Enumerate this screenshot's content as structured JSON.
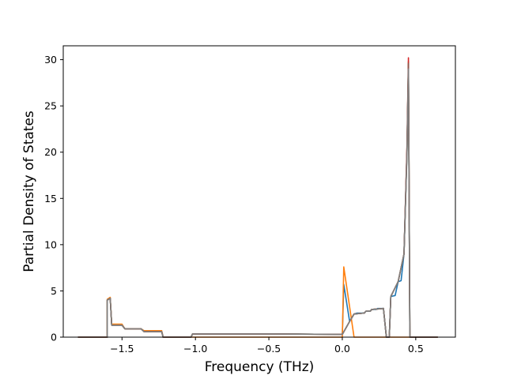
{
  "chart_data": {
    "type": "line",
    "title": "",
    "xlabel": "Frequency (THz)",
    "ylabel": "Partial Density of States",
    "xlim": [
      -1.9,
      0.77
    ],
    "ylim": [
      0,
      31.5
    ],
    "x_ticks": [
      -1.5,
      -1.0,
      -0.5,
      0.0,
      0.5
    ],
    "x_tick_labels": [
      "−1.5",
      "−1.0",
      "−0.5",
      "0.0",
      "0.5"
    ],
    "y_ticks": [
      0,
      5,
      10,
      15,
      20,
      25,
      30
    ],
    "y_tick_labels": [
      "0",
      "5",
      "10",
      "15",
      "20",
      "25",
      "30"
    ],
    "grid": false,
    "legend": "none",
    "series": [
      {
        "color": "#1f77b4",
        "points": [
          [
            -1.8,
            0
          ],
          [
            -1.6,
            0
          ],
          [
            -1.6,
            4.0
          ],
          [
            -1.58,
            4.2
          ],
          [
            -1.57,
            1.3
          ],
          [
            -1.5,
            1.3
          ],
          [
            -1.48,
            0.9
          ],
          [
            -1.37,
            0.9
          ],
          [
            -1.35,
            0.6
          ],
          [
            -1.23,
            0.6
          ],
          [
            -1.22,
            0
          ],
          [
            -1.03,
            0
          ],
          [
            -1.02,
            0.35
          ],
          [
            -0.8,
            0.35
          ],
          [
            -0.5,
            0.35
          ],
          [
            -0.3,
            0.33
          ],
          [
            0.0,
            0.3
          ],
          [
            0.01,
            5.7
          ],
          [
            0.05,
            1.7
          ],
          [
            0.08,
            2.5
          ],
          [
            0.1,
            2.6
          ],
          [
            0.15,
            2.6
          ],
          [
            0.16,
            2.8
          ],
          [
            0.19,
            2.8
          ],
          [
            0.2,
            3.0
          ],
          [
            0.23,
            3.0
          ],
          [
            0.24,
            3.1
          ],
          [
            0.28,
            3.1
          ],
          [
            0.3,
            0
          ],
          [
            0.32,
            0
          ],
          [
            0.33,
            4.4
          ],
          [
            0.36,
            4.5
          ],
          [
            0.38,
            6.0
          ],
          [
            0.4,
            6.1
          ],
          [
            0.42,
            9.0
          ],
          [
            0.44,
            20.0
          ],
          [
            0.45,
            29.5
          ],
          [
            0.46,
            0
          ],
          [
            0.65,
            0
          ]
        ]
      },
      {
        "color": "#ff7f0e",
        "points": [
          [
            -1.8,
            0
          ],
          [
            -1.6,
            0
          ],
          [
            -1.6,
            4.1
          ],
          [
            -1.58,
            4.3
          ],
          [
            -1.57,
            1.4
          ],
          [
            -1.5,
            1.4
          ],
          [
            -1.48,
            0.9
          ],
          [
            -1.37,
            0.9
          ],
          [
            -1.35,
            0.7
          ],
          [
            -1.23,
            0.7
          ],
          [
            -1.22,
            0
          ],
          [
            0.0,
            0
          ],
          [
            0.01,
            7.6
          ],
          [
            0.08,
            0
          ],
          [
            0.65,
            0
          ]
        ]
      },
      {
        "color": "#2ca02c",
        "points": [
          [
            -1.8,
            0
          ],
          [
            -1.6,
            0
          ],
          [
            -1.6,
            4.0
          ],
          [
            -1.58,
            4.2
          ],
          [
            -1.57,
            1.3
          ],
          [
            -1.5,
            1.3
          ],
          [
            -1.48,
            0.9
          ],
          [
            -1.37,
            0.9
          ],
          [
            -1.35,
            0.6
          ],
          [
            -1.23,
            0.6
          ],
          [
            -1.22,
            0
          ],
          [
            -1.03,
            0
          ],
          [
            -1.02,
            0.35
          ],
          [
            -0.5,
            0.35
          ],
          [
            0.0,
            0.3
          ],
          [
            0.05,
            1.7
          ],
          [
            0.08,
            2.5
          ],
          [
            0.15,
            2.6
          ],
          [
            0.16,
            2.8
          ],
          [
            0.19,
            2.8
          ],
          [
            0.2,
            3.0
          ],
          [
            0.28,
            3.1
          ],
          [
            0.3,
            0
          ],
          [
            0.32,
            0
          ],
          [
            0.33,
            4.4
          ],
          [
            0.38,
            6.0
          ],
          [
            0.42,
            9.0
          ],
          [
            0.44,
            20.0
          ],
          [
            0.45,
            29.8
          ],
          [
            0.46,
            0
          ],
          [
            0.65,
            0
          ]
        ]
      },
      {
        "color": "#d62728",
        "points": [
          [
            -1.8,
            0
          ],
          [
            -1.6,
            0
          ],
          [
            -1.6,
            4.0
          ],
          [
            -1.58,
            4.2
          ],
          [
            -1.57,
            1.3
          ],
          [
            -1.5,
            1.3
          ],
          [
            -1.48,
            0.9
          ],
          [
            -1.37,
            0.9
          ],
          [
            -1.35,
            0.6
          ],
          [
            -1.23,
            0.6
          ],
          [
            -1.22,
            0
          ],
          [
            -1.03,
            0
          ],
          [
            -1.02,
            0.35
          ],
          [
            -0.5,
            0.35
          ],
          [
            0.0,
            0.3
          ],
          [
            0.05,
            1.7
          ],
          [
            0.08,
            2.5
          ],
          [
            0.15,
            2.6
          ],
          [
            0.16,
            2.8
          ],
          [
            0.19,
            2.8
          ],
          [
            0.2,
            3.0
          ],
          [
            0.28,
            3.1
          ],
          [
            0.3,
            0
          ],
          [
            0.32,
            0
          ],
          [
            0.33,
            4.4
          ],
          [
            0.38,
            6.0
          ],
          [
            0.42,
            9.0
          ],
          [
            0.44,
            20.5
          ],
          [
            0.45,
            30.2
          ],
          [
            0.46,
            0
          ],
          [
            0.65,
            0
          ]
        ]
      },
      {
        "color": "#8c564b",
        "points": [
          [
            -1.8,
            0
          ],
          [
            -1.6,
            0
          ],
          [
            -1.6,
            4.0
          ],
          [
            -1.58,
            4.2
          ],
          [
            -1.57,
            1.3
          ],
          [
            -1.5,
            1.3
          ],
          [
            -1.48,
            0.9
          ],
          [
            -1.37,
            0.9
          ],
          [
            -1.35,
            0.6
          ],
          [
            -1.23,
            0.6
          ],
          [
            -1.22,
            0
          ],
          [
            -1.03,
            0
          ],
          [
            -1.02,
            0.35
          ],
          [
            -0.5,
            0.35
          ],
          [
            0.0,
            0.3
          ],
          [
            0.05,
            1.7
          ],
          [
            0.08,
            2.5
          ],
          [
            0.15,
            2.6
          ],
          [
            0.16,
            2.8
          ],
          [
            0.19,
            2.8
          ],
          [
            0.2,
            3.0
          ],
          [
            0.28,
            3.1
          ],
          [
            0.3,
            0
          ],
          [
            0.32,
            0
          ],
          [
            0.33,
            4.4
          ],
          [
            0.38,
            6.0
          ],
          [
            0.42,
            9.0
          ],
          [
            0.44,
            20.0
          ],
          [
            0.45,
            29.6
          ],
          [
            0.46,
            0
          ],
          [
            0.65,
            0
          ]
        ]
      },
      {
        "color": "#7f7f7f",
        "points": [
          [
            -1.8,
            0
          ],
          [
            -1.6,
            0
          ],
          [
            -1.6,
            4.0
          ],
          [
            -1.58,
            4.2
          ],
          [
            -1.57,
            1.3
          ],
          [
            -1.5,
            1.3
          ],
          [
            -1.48,
            0.9
          ],
          [
            -1.37,
            0.9
          ],
          [
            -1.35,
            0.6
          ],
          [
            -1.23,
            0.6
          ],
          [
            -1.22,
            0
          ],
          [
            -1.03,
            0
          ],
          [
            -1.02,
            0.35
          ],
          [
            -0.5,
            0.35
          ],
          [
            0.0,
            0.3
          ],
          [
            0.05,
            1.7
          ],
          [
            0.08,
            2.5
          ],
          [
            0.15,
            2.6
          ],
          [
            0.16,
            2.8
          ],
          [
            0.19,
            2.8
          ],
          [
            0.2,
            3.0
          ],
          [
            0.28,
            3.1
          ],
          [
            0.3,
            0
          ],
          [
            0.32,
            0
          ],
          [
            0.33,
            4.4
          ],
          [
            0.38,
            6.0
          ],
          [
            0.42,
            9.0
          ],
          [
            0.44,
            19.5
          ],
          [
            0.45,
            29.0
          ],
          [
            0.46,
            0
          ],
          [
            0.65,
            0
          ]
        ]
      }
    ]
  }
}
